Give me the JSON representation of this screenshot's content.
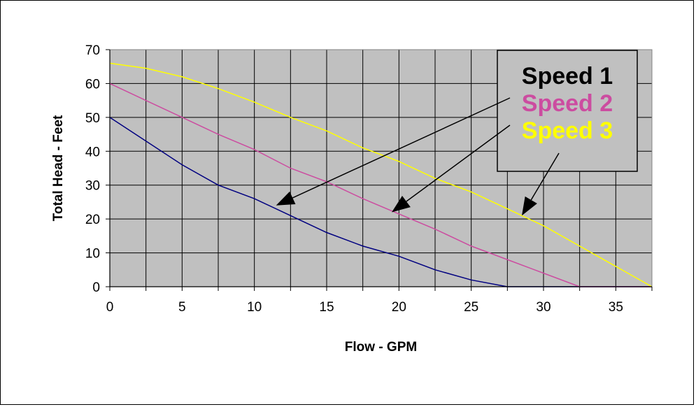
{
  "chart_data": {
    "type": "line",
    "title": "",
    "xlabel": "Flow  - GPM",
    "ylabel": "Total Head - Feet",
    "xlim": [
      0,
      37.5
    ],
    "ylim": [
      0,
      70
    ],
    "x_ticks": [
      "0",
      "5",
      "10",
      "15",
      "20",
      "25",
      "30",
      "35"
    ],
    "y_ticks": [
      "0",
      "10",
      "20",
      "30",
      "40",
      "50",
      "60",
      "70"
    ],
    "grid": true,
    "plot_background": "#c0c0c0",
    "legend_position": "top-right",
    "x": [
      0,
      2.5,
      5,
      7.5,
      10,
      12.5,
      15,
      17.5,
      20,
      22.5,
      25,
      27.5,
      30,
      32.5,
      35,
      37.5
    ],
    "series": [
      {
        "name": "Speed 1",
        "color": "#000080",
        "legend_color": "#000000",
        "values": [
          50,
          43,
          36,
          30,
          26,
          21,
          16,
          12,
          9,
          5,
          2,
          0,
          0,
          0,
          0,
          0
        ]
      },
      {
        "name": "Speed 2",
        "color": "#cc4ca0",
        "legend_color": "#cc4ca0",
        "values": [
          60,
          55,
          50,
          45,
          40.5,
          35,
          31,
          26,
          21.5,
          17,
          12,
          8,
          4,
          0,
          0,
          0
        ]
      },
      {
        "name": "Speed 3",
        "color": "#ffff00",
        "legend_color": "#ffff00",
        "values": [
          66,
          64.5,
          62,
          58.5,
          54.5,
          50,
          46,
          41,
          37,
          32,
          28,
          23,
          18,
          12,
          6,
          0
        ]
      }
    ],
    "arrows": [
      {
        "series": "Speed 1",
        "to_x": 11.5,
        "to_y": 24
      },
      {
        "series": "Speed 2",
        "to_x": 19.5,
        "to_y": 22
      },
      {
        "series": "Speed 3",
        "to_x": 28.5,
        "to_y": 21
      }
    ]
  }
}
